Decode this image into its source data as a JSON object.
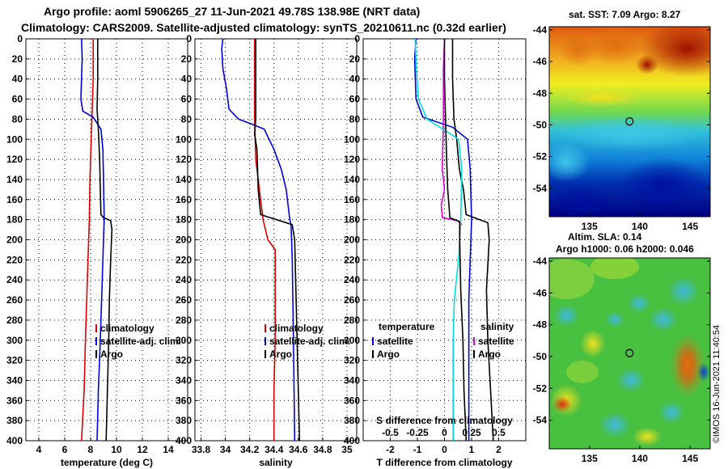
{
  "title_line1": "Argo profile: aoml 5906265_27 11-Jun-2021 49.78S 138.98E (NRT data)",
  "title_line2": "Climatology: CARS2009. Satellite-adjusted climatology: synTS_20210611.nc (0.32d earlier)",
  "credit": "©IMOS 16-Jun-2021 11:40:54",
  "colors": {
    "climatology": "#dd0000",
    "satellite": "#0000dd",
    "argo": "#000000",
    "s_satellite": "#00dddd",
    "s_argo": "#000000",
    "s_climatology": "#dd00dd"
  },
  "chart_data": [
    {
      "id": "temp",
      "type": "line",
      "xlabel": "temperature (deg C)",
      "ylabel": "depth",
      "xlim": [
        3,
        15.5
      ],
      "ylim": [
        400,
        0
      ],
      "xticks": [
        4,
        6,
        8,
        10,
        12,
        14
      ],
      "yticks": [
        0,
        20,
        40,
        60,
        80,
        100,
        120,
        140,
        160,
        180,
        200,
        220,
        240,
        260,
        280,
        300,
        320,
        340,
        360,
        380,
        400
      ],
      "grid": true,
      "legend": [
        "climatology",
        "satellite-adj. clim.",
        "Argo"
      ],
      "series": [
        {
          "name": "climatology",
          "color": "#dd0000",
          "points": [
            [
              8.2,
              0
            ],
            [
              8.2,
              40
            ],
            [
              8.1,
              80
            ],
            [
              7.95,
              140
            ],
            [
              7.9,
              180
            ],
            [
              7.85,
              200
            ],
            [
              7.7,
              260
            ],
            [
              7.6,
              300
            ],
            [
              7.5,
              350
            ],
            [
              7.3,
              400
            ]
          ]
        },
        {
          "name": "satellite-adj. clim.",
          "color": "#0000dd",
          "points": [
            [
              7.3,
              0
            ],
            [
              7.35,
              20
            ],
            [
              7.3,
              40
            ],
            [
              7.25,
              60
            ],
            [
              7.4,
              72
            ],
            [
              8.2,
              78
            ],
            [
              8.8,
              90
            ],
            [
              8.95,
              110
            ],
            [
              9.0,
              140
            ],
            [
              9.05,
              180
            ],
            [
              8.95,
              220
            ],
            [
              8.85,
              260
            ],
            [
              8.75,
              300
            ],
            [
              8.6,
              350
            ],
            [
              8.5,
              400
            ]
          ]
        },
        {
          "name": "Argo",
          "color": "#000000",
          "points": [
            [
              8.55,
              0
            ],
            [
              8.55,
              40
            ],
            [
              8.5,
              70
            ],
            [
              8.6,
              90
            ],
            [
              8.7,
              120
            ],
            [
              8.75,
              150
            ],
            [
              8.8,
              175
            ],
            [
              9.0,
              178
            ],
            [
              9.55,
              181
            ],
            [
              9.65,
              190
            ],
            [
              9.55,
              220
            ],
            [
              9.45,
              260
            ],
            [
              9.4,
              300
            ],
            [
              9.3,
              350
            ],
            [
              9.2,
              400
            ]
          ]
        }
      ]
    },
    {
      "id": "sal",
      "type": "line",
      "xlabel": "salinity",
      "ylabel": "depth",
      "xlim": [
        33.75,
        35.08
      ],
      "ylim": [
        400,
        0
      ],
      "xticks": [
        33.8,
        34,
        34.2,
        34.4,
        34.6,
        34.8,
        35
      ],
      "yticks": [
        0,
        20,
        40,
        60,
        80,
        100,
        120,
        140,
        160,
        180,
        200,
        220,
        240,
        260,
        280,
        300,
        320,
        340,
        360,
        380,
        400
      ],
      "grid": true,
      "legend": [
        "climatology",
        "satellite-adj. clim.",
        "Argo"
      ],
      "series": [
        {
          "name": "climatology",
          "color": "#dd0000",
          "points": [
            [
              34.24,
              0
            ],
            [
              34.24,
              40
            ],
            [
              34.24,
              80
            ],
            [
              34.25,
              120
            ],
            [
              34.28,
              150
            ],
            [
              34.31,
              180
            ],
            [
              34.35,
              200
            ],
            [
              34.41,
              210
            ],
            [
              34.41,
              250
            ],
            [
              34.41,
              300
            ],
            [
              34.4,
              350
            ],
            [
              34.4,
              400
            ]
          ]
        },
        {
          "name": "satellite-adj. clim.",
          "color": "#0000dd",
          "points": [
            [
              33.98,
              0
            ],
            [
              33.97,
              10
            ],
            [
              33.98,
              30
            ],
            [
              34.01,
              50
            ],
            [
              34.03,
              70
            ],
            [
              34.11,
              80
            ],
            [
              34.22,
              85
            ],
            [
              34.32,
              90
            ],
            [
              34.4,
              110
            ],
            [
              34.46,
              130
            ],
            [
              34.5,
              150
            ],
            [
              34.53,
              180
            ],
            [
              34.54,
              185
            ],
            [
              34.55,
              220
            ],
            [
              34.56,
              300
            ],
            [
              34.57,
              400
            ]
          ]
        },
        {
          "name": "Argo",
          "color": "#000000",
          "points": [
            [
              34.25,
              0
            ],
            [
              34.25,
              40
            ],
            [
              34.25,
              80
            ],
            [
              34.24,
              95
            ],
            [
              34.26,
              110
            ],
            [
              34.27,
              150
            ],
            [
              34.29,
              175
            ],
            [
              34.55,
              185
            ],
            [
              34.57,
              200
            ],
            [
              34.58,
              250
            ],
            [
              34.59,
              300
            ],
            [
              34.6,
              350
            ],
            [
              34.61,
              400
            ]
          ]
        }
      ]
    },
    {
      "id": "diff",
      "type": "line",
      "xlabel": "T difference from climatology",
      "xlabel2": "S difference from climatology",
      "ylabel": "depth",
      "xlim": [
        -3,
        3
      ],
      "ylim": [
        400,
        0
      ],
      "xticks": [
        -2,
        -1,
        0,
        1,
        2
      ],
      "xticks2": [
        -0.5,
        -0.25,
        0,
        0.25,
        0.5
      ],
      "yticks": [
        0,
        20,
        40,
        60,
        80,
        100,
        120,
        140,
        160,
        180,
        200,
        220,
        240,
        260,
        280,
        300,
        320,
        340,
        360,
        380,
        400
      ],
      "grid": true,
      "legend_left_title": "temperature",
      "legend_left": [
        "satellite",
        "Argo"
      ],
      "legend_right_title": "salinity",
      "legend_right": [
        "satellite",
        "Argo"
      ],
      "series": [
        {
          "name": "T satellite",
          "color": "#0000dd",
          "points": [
            [
              -1.05,
              0
            ],
            [
              -1.1,
              20
            ],
            [
              -1.05,
              60
            ],
            [
              -0.8,
              78
            ],
            [
              0.3,
              88
            ],
            [
              0.85,
              100
            ],
            [
              0.95,
              130
            ],
            [
              1.0,
              180
            ],
            [
              0.95,
              220
            ],
            [
              0.9,
              260
            ],
            [
              0.9,
              300
            ],
            [
              0.9,
              350
            ],
            [
              0.9,
              400
            ]
          ]
        },
        {
          "name": "T Argo",
          "color": "#000000",
          "points": [
            [
              0.3,
              0
            ],
            [
              0.3,
              40
            ],
            [
              0.35,
              80
            ],
            [
              0.45,
              100
            ],
            [
              0.55,
              130
            ],
            [
              0.7,
              150
            ],
            [
              0.8,
              175
            ],
            [
              1.1,
              178
            ],
            [
              1.6,
              183
            ],
            [
              1.65,
              200
            ],
            [
              1.55,
              250
            ],
            [
              1.6,
              300
            ],
            [
              1.7,
              350
            ],
            [
              1.8,
              400
            ]
          ]
        }
      ]
    },
    {
      "id": "diffS",
      "type": "line",
      "xlabel": "S difference from climatology",
      "xlim": [
        -0.75,
        0.75
      ],
      "series": [
        {
          "name": "S climatology diff",
          "color": "#dd00dd",
          "points": [
            [
              0,
              0
            ],
            [
              -0.01,
              30
            ],
            [
              -0.01,
              80
            ],
            [
              -0.02,
              130
            ],
            [
              0.0,
              150
            ],
            [
              -0.03,
              165
            ],
            [
              -0.02,
              178
            ],
            [
              0.12,
              181
            ],
            [
              0.16,
              185
            ]
          ]
        },
        {
          "name": "S satellite",
          "color": "#00dddd",
          "points": [
            [
              -0.27,
              0
            ],
            [
              -0.26,
              30
            ],
            [
              -0.24,
              60
            ],
            [
              -0.16,
              80
            ],
            [
              0.06,
              95
            ],
            [
              0.13,
              100
            ],
            [
              0.16,
              130
            ],
            [
              0.15,
              180
            ],
            [
              0.13,
              220
            ],
            [
              0.09,
              260
            ],
            [
              0.08,
              300
            ],
            [
              0.08,
              350
            ],
            [
              0.08,
              400
            ]
          ]
        },
        {
          "name": "S Argo",
          "color": "#000000",
          "points": [
            [
              0,
              0
            ],
            [
              0,
              40
            ],
            [
              0.01,
              80
            ],
            [
              0.02,
              120
            ],
            [
              0.03,
              150
            ],
            [
              0.05,
              178
            ],
            [
              0.14,
              182
            ],
            [
              0.14,
              200
            ],
            [
              0.15,
              250
            ],
            [
              0.17,
              300
            ],
            [
              0.18,
              350
            ],
            [
              0.2,
              400
            ]
          ]
        }
      ]
    },
    {
      "id": "sst_map",
      "type": "heatmap",
      "title": "sat. SST: 7.09 Argo: 8.27",
      "xlim": [
        131,
        147
      ],
      "ylim": [
        -55.8,
        -43.8
      ],
      "xticks": [
        135,
        140,
        145
      ],
      "yticks": [
        -44,
        -46,
        -48,
        -50,
        -52,
        -54
      ],
      "marker": [
        138.98,
        -49.78
      ]
    },
    {
      "id": "sla_map",
      "type": "heatmap",
      "title": "Altim. SLA: 0.14",
      "title2": "Argo h1000: 0.06 h2000: 0.046",
      "xlim": [
        131,
        147
      ],
      "ylim": [
        -55.8,
        -43.8
      ],
      "xticks": [
        135,
        140,
        145
      ],
      "yticks": [
        -44,
        -46,
        -48,
        -50,
        -52,
        -54
      ],
      "marker": [
        138.98,
        -49.78
      ]
    }
  ]
}
